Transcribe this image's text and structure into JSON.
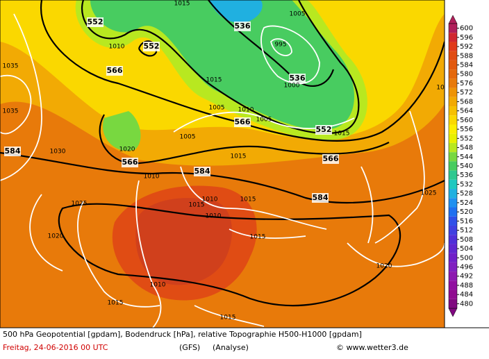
{
  "map": {
    "geopotential_labels": [
      "552",
      "552",
      "536",
      "536",
      "566",
      "566",
      "552",
      "584",
      "566",
      "566",
      "584",
      "584"
    ],
    "pressure_labels": [
      "1015",
      "1005",
      "995",
      "1000",
      "1010",
      "1035",
      "1015",
      "1005",
      "1010",
      "1005",
      "1015",
      "1035",
      "1030",
      "1020",
      "1005",
      "1015",
      "1010",
      "1010",
      "1015",
      "1015",
      "1010",
      "1025",
      "1025",
      "1020",
      "1015",
      "1010",
      "1020",
      "1015",
      "1015",
      "10"
    ]
  },
  "colorbar": {
    "ticks": [
      600,
      596,
      592,
      588,
      584,
      580,
      576,
      572,
      568,
      564,
      560,
      556,
      552,
      548,
      544,
      540,
      536,
      532,
      528,
      524,
      520,
      516,
      512,
      508,
      504,
      500,
      496,
      492,
      488,
      484,
      480
    ],
    "colors": [
      "#b0205a",
      "#d02830",
      "#e03a1a",
      "#e04c14",
      "#e25a10",
      "#e4680c",
      "#e87a0a",
      "#ee9406",
      "#f2aa04",
      "#f6c002",
      "#fad800",
      "#fbee00",
      "#e8f000",
      "#b8e820",
      "#78d840",
      "#48cc60",
      "#30c890",
      "#20c8c0",
      "#20b0e0",
      "#2090f0",
      "#2070f0",
      "#3050e8",
      "#4040e0",
      "#5030d8",
      "#6028d0",
      "#7020c8",
      "#8020c0",
      "#8c18b0",
      "#9010a0",
      "#900c90",
      "#800880"
    ]
  },
  "footer": {
    "line1": "500 hPa Geopotential [gpdam], Bodendruck [hPa], relative Topographie H500-H1000 [gpdam]",
    "date": "Freitag, 24-06-2016  00 UTC",
    "model": "(GFS)",
    "run": "(Analyse)",
    "credit": "© www.wetter3.de"
  }
}
